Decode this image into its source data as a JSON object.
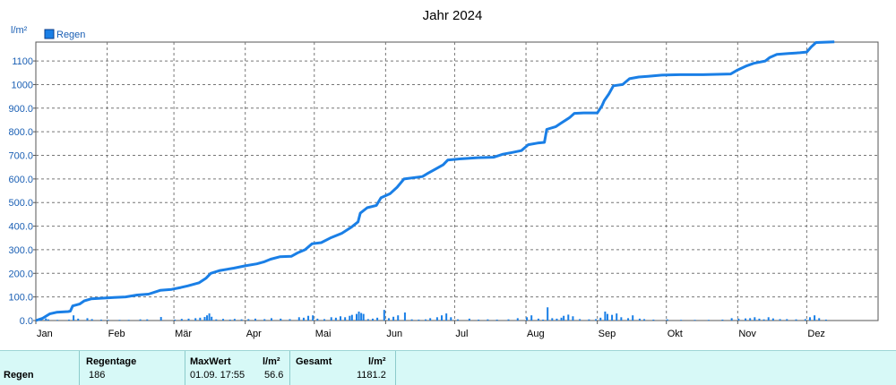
{
  "chart_data": {
    "type": "area",
    "title": "Jahr 2024",
    "ylabel": "l/m²",
    "legend": {
      "label": "Regen",
      "placement": "top-left"
    },
    "ylim": [
      0,
      1180
    ],
    "yticks": [
      "0.0",
      "100.0",
      "200.0",
      "300.0",
      "400.0",
      "500.0",
      "600.0",
      "700.0",
      "800.0",
      "900.0",
      "1000",
      "1100"
    ],
    "months": [
      "Jan",
      "Feb",
      "Mär",
      "Apr",
      "Mai",
      "Jun",
      "Jul",
      "Aug",
      "Sep",
      "Okt",
      "Nov",
      "Dez"
    ],
    "x_unit": "day of year 2024",
    "series": [
      {
        "name": "Regen",
        "kind": "cumulative-line",
        "color": "#1a7fe6",
        "points": [
          [
            0,
            0
          ],
          [
            3,
            10
          ],
          [
            6,
            28
          ],
          [
            9,
            35
          ],
          [
            14,
            38
          ],
          [
            15,
            40
          ],
          [
            16,
            62
          ],
          [
            19,
            70
          ],
          [
            21,
            83
          ],
          [
            24,
            92
          ],
          [
            29,
            95
          ],
          [
            34,
            98
          ],
          [
            39,
            100
          ],
          [
            44,
            108
          ],
          [
            49,
            112
          ],
          [
            54,
            128
          ],
          [
            59,
            132
          ],
          [
            63,
            140
          ],
          [
            66,
            147
          ],
          [
            71,
            160
          ],
          [
            74,
            180
          ],
          [
            76,
            200
          ],
          [
            80,
            212
          ],
          [
            86,
            222
          ],
          [
            91,
            232
          ],
          [
            96,
            240
          ],
          [
            99,
            248
          ],
          [
            102,
            260
          ],
          [
            106,
            270
          ],
          [
            111,
            272
          ],
          [
            114,
            288
          ],
          [
            117,
            300
          ],
          [
            120,
            325
          ],
          [
            124,
            330
          ],
          [
            128,
            350
          ],
          [
            133,
            370
          ],
          [
            137,
            395
          ],
          [
            140,
            418
          ],
          [
            141,
            455
          ],
          [
            144,
            478
          ],
          [
            148,
            488
          ],
          [
            150,
            520
          ],
          [
            154,
            538
          ],
          [
            157,
            565
          ],
          [
            160,
            600
          ],
          [
            168,
            610
          ],
          [
            170,
            622
          ],
          [
            173,
            638
          ],
          [
            177,
            660
          ],
          [
            179,
            680
          ],
          [
            184,
            685
          ],
          [
            192,
            690
          ],
          [
            199,
            692
          ],
          [
            203,
            705
          ],
          [
            207,
            712
          ],
          [
            211,
            720
          ],
          [
            214,
            745
          ],
          [
            218,
            752
          ],
          [
            221,
            755
          ],
          [
            222,
            810
          ],
          [
            226,
            822
          ],
          [
            228,
            835
          ],
          [
            232,
            860
          ],
          [
            234,
            878
          ],
          [
            238,
            880
          ],
          [
            244,
            880
          ],
          [
            246,
            910
          ],
          [
            247,
            932
          ],
          [
            249,
            960
          ],
          [
            251,
            995
          ],
          [
            255,
            1000
          ],
          [
            258,
            1025
          ],
          [
            262,
            1032
          ],
          [
            266,
            1035
          ],
          [
            272,
            1040
          ],
          [
            280,
            1042
          ],
          [
            290,
            1042
          ],
          [
            302,
            1045
          ],
          [
            305,
            1062
          ],
          [
            309,
            1080
          ],
          [
            312,
            1090
          ],
          [
            317,
            1100
          ],
          [
            319,
            1115
          ],
          [
            322,
            1128
          ],
          [
            327,
            1132
          ],
          [
            332,
            1135
          ],
          [
            335,
            1138
          ],
          [
            337,
            1160
          ],
          [
            339,
            1178
          ],
          [
            347,
            1181
          ]
        ]
      },
      {
        "name": "Regen",
        "kind": "daily-bars",
        "color": "#1a7fe6",
        "bars": [
          [
            2,
            6
          ],
          [
            4,
            9
          ],
          [
            5,
            5
          ],
          [
            9,
            3
          ],
          [
            14,
            4
          ],
          [
            16,
            22
          ],
          [
            18,
            8
          ],
          [
            22,
            10
          ],
          [
            24,
            6
          ],
          [
            28,
            4
          ],
          [
            31,
            3
          ],
          [
            36,
            3
          ],
          [
            40,
            3
          ],
          [
            45,
            5
          ],
          [
            48,
            5
          ],
          [
            54,
            15
          ],
          [
            60,
            4
          ],
          [
            63,
            7
          ],
          [
            66,
            8
          ],
          [
            69,
            10
          ],
          [
            71,
            12
          ],
          [
            73,
            15
          ],
          [
            74,
            22
          ],
          [
            75,
            30
          ],
          [
            76,
            16
          ],
          [
            78,
            5
          ],
          [
            81,
            7
          ],
          [
            84,
            4
          ],
          [
            86,
            7
          ],
          [
            89,
            5
          ],
          [
            92,
            6
          ],
          [
            95,
            8
          ],
          [
            99,
            6
          ],
          [
            102,
            10
          ],
          [
            106,
            8
          ],
          [
            110,
            6
          ],
          [
            114,
            14
          ],
          [
            116,
            12
          ],
          [
            118,
            20
          ],
          [
            120,
            22
          ],
          [
            122,
            8
          ],
          [
            125,
            6
          ],
          [
            128,
            14
          ],
          [
            130,
            12
          ],
          [
            132,
            18
          ],
          [
            134,
            14
          ],
          [
            136,
            20
          ],
          [
            137,
            24
          ],
          [
            139,
            28
          ],
          [
            140,
            38
          ],
          [
            141,
            32
          ],
          [
            142,
            28
          ],
          [
            144,
            6
          ],
          [
            146,
            8
          ],
          [
            148,
            12
          ],
          [
            151,
            45
          ],
          [
            153,
            10
          ],
          [
            155,
            16
          ],
          [
            157,
            22
          ],
          [
            160,
            34
          ],
          [
            163,
            5
          ],
          [
            166,
            4
          ],
          [
            169,
            5
          ],
          [
            171,
            10
          ],
          [
            174,
            14
          ],
          [
            176,
            22
          ],
          [
            178,
            30
          ],
          [
            180,
            14
          ],
          [
            183,
            5
          ],
          [
            188,
            8
          ],
          [
            192,
            4
          ],
          [
            196,
            5
          ],
          [
            200,
            4
          ],
          [
            205,
            5
          ],
          [
            209,
            10
          ],
          [
            213,
            14
          ],
          [
            215,
            22
          ],
          [
            218,
            8
          ],
          [
            220,
            4
          ],
          [
            222,
            56
          ],
          [
            224,
            10
          ],
          [
            226,
            8
          ],
          [
            228,
            12
          ],
          [
            229,
            20
          ],
          [
            231,
            25
          ],
          [
            233,
            18
          ],
          [
            236,
            6
          ],
          [
            240,
            5
          ],
          [
            243,
            6
          ],
          [
            245,
            12
          ],
          [
            247,
            38
          ],
          [
            248,
            28
          ],
          [
            250,
            24
          ],
          [
            252,
            30
          ],
          [
            254,
            14
          ],
          [
            257,
            10
          ],
          [
            259,
            22
          ],
          [
            262,
            8
          ],
          [
            264,
            6
          ],
          [
            268,
            4
          ],
          [
            274,
            5
          ],
          [
            280,
            3
          ],
          [
            286,
            3
          ],
          [
            292,
            3
          ],
          [
            298,
            4
          ],
          [
            302,
            10
          ],
          [
            305,
            8
          ],
          [
            308,
            9
          ],
          [
            310,
            10
          ],
          [
            312,
            14
          ],
          [
            314,
            8
          ],
          [
            316,
            5
          ],
          [
            318,
            14
          ],
          [
            320,
            9
          ],
          [
            323,
            6
          ],
          [
            326,
            6
          ],
          [
            330,
            5
          ],
          [
            334,
            6
          ],
          [
            336,
            14
          ],
          [
            338,
            22
          ],
          [
            340,
            10
          ],
          [
            343,
            4
          ]
        ]
      }
    ]
  },
  "summary": {
    "row_label": "Regen",
    "regentage": {
      "header": "Regentage",
      "value": "186"
    },
    "maxwert": {
      "header": "MaxWert",
      "unit": "l/m²",
      "date": "01.09.  17:55",
      "value": "56.6"
    },
    "gesamt": {
      "header": "Gesamt",
      "unit": "l/m²",
      "value": "1181.2"
    }
  }
}
